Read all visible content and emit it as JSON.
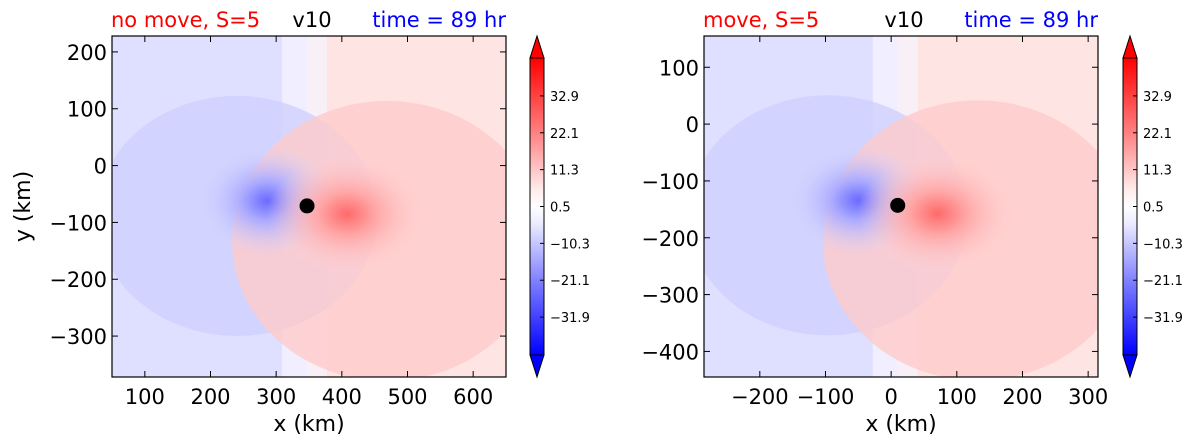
{
  "chart_data": [
    {
      "type": "heatmap",
      "title_left": "no move, S=5",
      "title_center": "v10",
      "title_right": "time = 89 hr",
      "title_left_color": "#ff0000",
      "title_right_color": "#0000ff",
      "xlabel": "x (km)",
      "ylabel": "y (km)",
      "xlim": [
        50,
        650
      ],
      "ylim": [
        -372,
        228
      ],
      "xticks": [
        100,
        200,
        300,
        400,
        500,
        600
      ],
      "xtick_labels": [
        "100",
        "200",
        "300",
        "400",
        "500",
        "600"
      ],
      "yticks": [
        200,
        100,
        0,
        -100,
        -200,
        -300
      ],
      "ytick_labels": [
        "200",
        "100",
        "0",
        "−100",
        "−200",
        "−300"
      ],
      "center": {
        "x": 347,
        "y": -71
      },
      "colorbar": {
        "ticks": [
          32.9,
          22.1,
          11.3,
          0.5,
          -10.3,
          -21.1,
          -31.9
        ],
        "tick_labels": [
          "32.9",
          "22.1",
          "11.3",
          "0.5",
          "−10.3",
          "−21.1",
          "−31.9"
        ],
        "range": [
          -43,
          44
        ],
        "colormap": "bwr"
      }
    },
    {
      "type": "heatmap",
      "title_left": "move, S=5",
      "title_center": "v10",
      "title_right": "time = 89 hr",
      "title_left_color": "#ff0000",
      "title_right_color": "#0000ff",
      "xlabel": "x (km)",
      "ylabel": "",
      "xlim": [
        -285,
        315
      ],
      "ylim": [
        -445,
        155
      ],
      "xticks": [
        -200,
        -100,
        0,
        100,
        200,
        300
      ],
      "xtick_labels": [
        "−200",
        "−100",
        "0",
        "100",
        "200",
        "300"
      ],
      "yticks": [
        100,
        0,
        -100,
        -200,
        -300,
        -400
      ],
      "ytick_labels": [
        "100",
        "0",
        "−100",
        "−200",
        "−300",
        "−400"
      ],
      "center": {
        "x": 10,
        "y": -143
      },
      "colorbar": {
        "ticks": [
          32.9,
          22.1,
          11.3,
          0.5,
          -10.3,
          -21.1,
          -31.9
        ],
        "tick_labels": [
          "32.9",
          "22.1",
          "11.3",
          "0.5",
          "−10.3",
          "−21.1",
          "−31.9"
        ],
        "range": [
          -43,
          44
        ],
        "colormap": "bwr"
      }
    }
  ]
}
